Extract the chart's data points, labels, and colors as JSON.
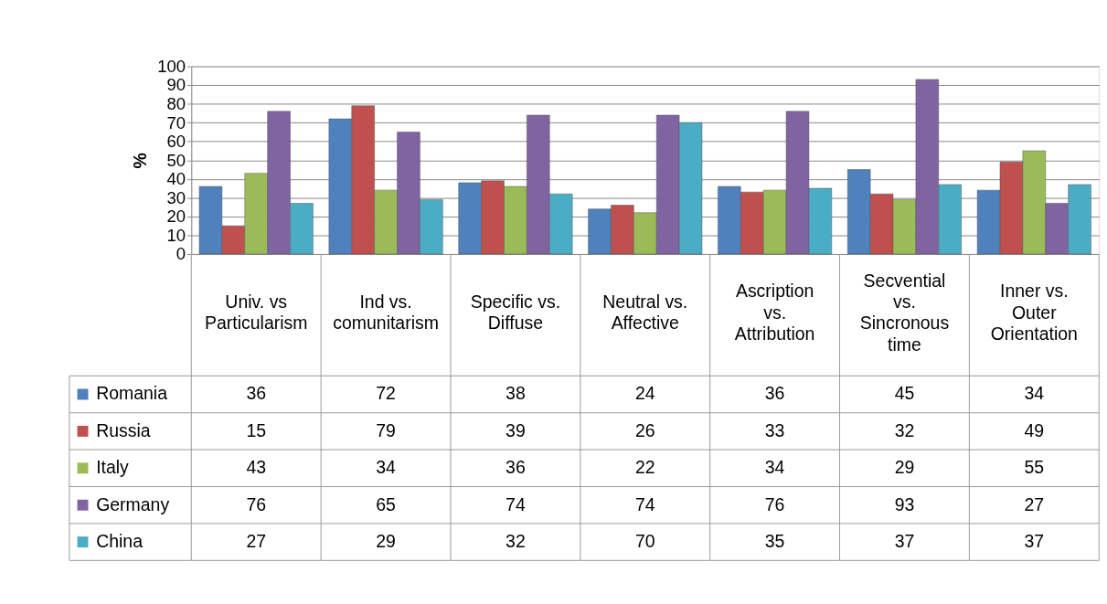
{
  "chart_data": {
    "type": "bar",
    "ylabel": "%",
    "categories": [
      "Univ. vs Particularism",
      "Ind vs. comunitarism",
      "Specific vs. Diffuse",
      "Neutral vs. Affective",
      "Ascription vs. Attribution",
      "Secvential vs. Sincronous time",
      "Inner vs. Outer Orientation"
    ],
    "series": [
      {
        "name": "Romania",
        "color": "#4f81bd",
        "values": [
          36,
          72,
          38,
          24,
          36,
          45,
          34
        ]
      },
      {
        "name": "Russia",
        "color": "#c0504d",
        "values": [
          15,
          79,
          39,
          26,
          33,
          32,
          49
        ]
      },
      {
        "name": "Italy",
        "color": "#9bbb59",
        "values": [
          43,
          34,
          36,
          22,
          34,
          29,
          55
        ]
      },
      {
        "name": "Germany",
        "color": "#8064a2",
        "values": [
          76,
          65,
          74,
          74,
          76,
          93,
          27
        ]
      },
      {
        "name": "China",
        "color": "#4bacc6",
        "values": [
          27,
          29,
          32,
          70,
          35,
          37,
          37
        ]
      }
    ],
    "ylim": [
      0,
      100
    ],
    "yticks": [
      0,
      10,
      20,
      30,
      40,
      50,
      60,
      70,
      80,
      90,
      100
    ],
    "grid": "y",
    "legend": "bottom",
    "data_labels": true,
    "tick_labels": "y"
  }
}
